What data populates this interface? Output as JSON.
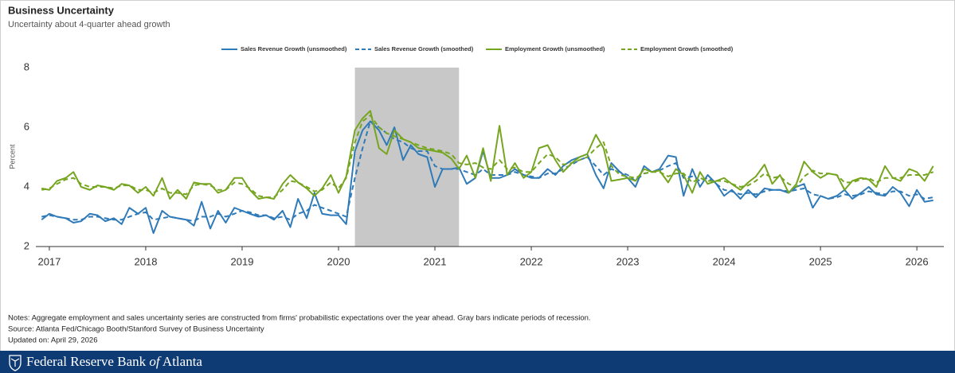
{
  "chart_data": {
    "type": "line",
    "title": "Business Uncertainty",
    "subtitle": "Uncertainty about 4-quarter ahead growth",
    "y_label": "Percent",
    "xlim": [
      2016.86,
      2026.28
    ],
    "xticks": [
      2017,
      2018,
      2019,
      2020,
      2021,
      2022,
      2023,
      2024,
      2025,
      2026
    ],
    "ylim": [
      2,
      8
    ],
    "yticks": [
      2,
      4,
      6,
      8
    ],
    "grid": false,
    "shaded_periods": [
      [
        2020.17,
        2021.25
      ]
    ],
    "shade_color": "#c8c8c8",
    "x": [
      2016.92,
      2017.0,
      2017.08,
      2017.17,
      2017.25,
      2017.33,
      2017.42,
      2017.5,
      2017.58,
      2017.67,
      2017.75,
      2017.83,
      2017.92,
      2018.0,
      2018.08,
      2018.17,
      2018.25,
      2018.33,
      2018.42,
      2018.5,
      2018.58,
      2018.67,
      2018.75,
      2018.83,
      2018.92,
      2019.0,
      2019.08,
      2019.17,
      2019.25,
      2019.33,
      2019.42,
      2019.5,
      2019.58,
      2019.67,
      2019.75,
      2019.83,
      2019.92,
      2020.0,
      2020.08,
      2020.17,
      2020.25,
      2020.33,
      2020.42,
      2020.5,
      2020.58,
      2020.67,
      2020.75,
      2020.83,
      2020.92,
      2021.0,
      2021.08,
      2021.17,
      2021.25,
      2021.33,
      2021.42,
      2021.5,
      2021.58,
      2021.67,
      2021.75,
      2021.83,
      2021.92,
      2022.0,
      2022.08,
      2022.17,
      2022.25,
      2022.33,
      2022.42,
      2022.5,
      2022.58,
      2022.67,
      2022.75,
      2022.83,
      2022.92,
      2023.0,
      2023.08,
      2023.17,
      2023.25,
      2023.33,
      2023.42,
      2023.5,
      2023.58,
      2023.67,
      2023.75,
      2023.83,
      2023.92,
      2024.0,
      2024.08,
      2024.17,
      2024.25,
      2024.33,
      2024.42,
      2024.5,
      2024.58,
      2024.67,
      2024.75,
      2024.83,
      2024.92,
      2025.0,
      2025.08,
      2025.17,
      2025.25,
      2025.33,
      2025.42,
      2025.5,
      2025.58,
      2025.67,
      2025.75,
      2025.83,
      2025.92,
      2026.0,
      2026.08,
      2026.17
    ],
    "series": [
      {
        "name": "Sales Revenue Growth (unsmoothed)",
        "color": "#2f7ab8",
        "dashed": false,
        "values": [
          2.9,
          3.1,
          3.0,
          2.95,
          2.8,
          2.85,
          3.1,
          3.05,
          2.85,
          2.95,
          2.75,
          3.3,
          3.1,
          3.3,
          2.45,
          3.2,
          3.0,
          2.95,
          2.9,
          2.7,
          3.5,
          2.6,
          3.2,
          2.8,
          3.3,
          3.2,
          3.1,
          3.0,
          3.05,
          2.9,
          3.2,
          2.65,
          3.6,
          2.95,
          3.8,
          3.1,
          3.05,
          3.05,
          2.75,
          5.2,
          5.9,
          6.2,
          5.9,
          5.4,
          6.0,
          4.9,
          5.4,
          5.1,
          5.0,
          4.0,
          4.6,
          4.6,
          4.65,
          4.1,
          4.3,
          5.2,
          4.3,
          4.3,
          4.4,
          4.6,
          4.4,
          4.3,
          4.3,
          4.6,
          4.4,
          4.7,
          4.9,
          5.0,
          5.1,
          4.4,
          3.95,
          4.8,
          4.5,
          4.3,
          4.0,
          4.7,
          4.5,
          4.6,
          5.05,
          5.0,
          3.7,
          4.6,
          4.0,
          4.4,
          4.1,
          3.7,
          3.9,
          3.6,
          3.9,
          3.65,
          3.95,
          3.9,
          3.9,
          3.8,
          4.0,
          4.1,
          3.3,
          3.7,
          3.6,
          3.7,
          3.9,
          3.6,
          3.8,
          4.0,
          3.75,
          3.7,
          4.0,
          3.8,
          3.35,
          3.9,
          3.5,
          3.55
        ]
      },
      {
        "name": "Sales Revenue Growth (smoothed)",
        "color": "#2f7ab8",
        "dashed": true,
        "values": [
          3.0,
          3.05,
          3.0,
          2.95,
          2.9,
          2.9,
          3.0,
          3.0,
          2.95,
          2.9,
          2.9,
          3.0,
          3.1,
          3.15,
          2.9,
          2.95,
          3.0,
          2.95,
          2.9,
          2.85,
          3.0,
          3.0,
          3.1,
          3.0,
          3.1,
          3.2,
          3.15,
          3.05,
          3.05,
          2.95,
          3.0,
          2.9,
          3.1,
          3.2,
          3.4,
          3.3,
          3.2,
          3.1,
          3.0,
          4.3,
          5.3,
          6.2,
          6.0,
          5.8,
          5.6,
          5.5,
          5.3,
          5.2,
          5.2,
          4.7,
          4.6,
          4.6,
          4.6,
          4.5,
          4.4,
          4.6,
          4.4,
          4.4,
          4.4,
          4.5,
          4.4,
          4.35,
          4.3,
          4.45,
          4.45,
          4.6,
          4.75,
          4.9,
          5.0,
          4.7,
          4.4,
          4.6,
          4.5,
          4.4,
          4.2,
          4.45,
          4.5,
          4.55,
          4.7,
          4.8,
          4.3,
          4.35,
          4.2,
          4.3,
          4.1,
          3.9,
          3.85,
          3.75,
          3.8,
          3.75,
          3.85,
          3.9,
          3.9,
          3.85,
          3.9,
          3.95,
          3.75,
          3.7,
          3.6,
          3.65,
          3.75,
          3.7,
          3.75,
          3.85,
          3.8,
          3.75,
          3.85,
          3.85,
          3.7,
          3.75,
          3.6,
          3.65
        ]
      },
      {
        "name": "Employment Growth (unsmoothed)",
        "color": "#76a520",
        "dashed": false,
        "values": [
          3.95,
          3.9,
          4.2,
          4.3,
          4.5,
          4.0,
          3.9,
          4.05,
          4.0,
          3.9,
          4.1,
          4.05,
          3.8,
          4.0,
          3.7,
          4.3,
          3.6,
          3.9,
          3.6,
          4.15,
          4.1,
          4.1,
          3.8,
          3.9,
          4.3,
          4.3,
          3.9,
          3.6,
          3.65,
          3.6,
          4.1,
          4.4,
          4.15,
          3.95,
          3.7,
          3.95,
          4.4,
          3.8,
          4.35,
          5.9,
          6.3,
          6.55,
          5.3,
          5.1,
          5.9,
          5.6,
          5.5,
          5.3,
          5.25,
          5.2,
          5.15,
          4.95,
          4.6,
          5.05,
          4.3,
          5.3,
          4.2,
          6.05,
          4.4,
          4.8,
          4.3,
          4.5,
          5.3,
          5.4,
          4.9,
          4.5,
          4.8,
          5.0,
          5.1,
          5.75,
          5.3,
          4.2,
          4.25,
          4.3,
          4.2,
          4.6,
          4.5,
          4.55,
          4.15,
          4.6,
          4.4,
          3.8,
          4.5,
          4.1,
          4.2,
          4.3,
          4.1,
          3.9,
          4.15,
          4.35,
          4.75,
          4.1,
          4.4,
          3.8,
          4.1,
          4.85,
          4.5,
          4.3,
          4.45,
          4.4,
          3.9,
          4.2,
          4.3,
          4.25,
          4.0,
          4.7,
          4.3,
          4.2,
          4.6,
          4.5,
          4.2,
          4.7
        ]
      },
      {
        "name": "Employment Growth (smoothed)",
        "color": "#76a520",
        "dashed": true,
        "values": [
          3.9,
          3.95,
          4.1,
          4.25,
          4.3,
          4.1,
          4.0,
          4.0,
          4.0,
          3.95,
          4.05,
          4.05,
          3.9,
          3.9,
          3.8,
          3.95,
          3.8,
          3.8,
          3.75,
          4.05,
          4.1,
          4.05,
          3.9,
          3.9,
          4.15,
          4.1,
          3.95,
          3.7,
          3.65,
          3.65,
          3.9,
          4.2,
          4.15,
          4.0,
          3.85,
          3.9,
          4.15,
          3.95,
          4.3,
          5.5,
          6.2,
          6.4,
          6.0,
          5.8,
          5.7,
          5.6,
          5.5,
          5.4,
          5.3,
          5.25,
          5.2,
          5.1,
          4.8,
          4.75,
          4.8,
          4.65,
          4.6,
          4.9,
          4.6,
          4.65,
          4.5,
          4.5,
          4.8,
          5.1,
          5.0,
          4.75,
          4.8,
          4.9,
          5.0,
          5.3,
          5.5,
          4.7,
          4.4,
          4.35,
          4.3,
          4.45,
          4.5,
          4.5,
          4.35,
          4.45,
          4.45,
          4.15,
          4.3,
          4.2,
          4.2,
          4.2,
          4.1,
          4.0,
          4.05,
          4.2,
          4.45,
          4.3,
          4.35,
          4.1,
          4.0,
          4.35,
          4.55,
          4.45,
          4.45,
          4.4,
          4.15,
          4.15,
          4.25,
          4.3,
          4.15,
          4.3,
          4.3,
          4.3,
          4.4,
          4.4,
          4.4,
          4.5
        ]
      }
    ]
  },
  "notes": {
    "notes": "Notes: Aggregate employment and sales uncertainty series are constructed from firms' probabilistic expectations over the year ahead. Gray bars indicate periods of recession.",
    "source": "Source: Atlanta Fed/Chicago Booth/Stanford Survey of Business Uncertainty",
    "updated": "Updated on: April 29, 2026"
  },
  "footer": {
    "brand_name": "Federal Reserve Bank",
    "brand_of": "of",
    "brand_place": "Atlanta"
  }
}
